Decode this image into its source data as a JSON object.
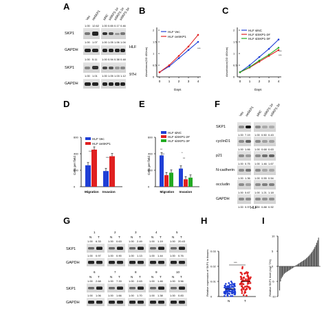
{
  "panels": {
    "A": "A",
    "B": "B",
    "C": "C",
    "D": "D",
    "E": "E",
    "F": "F",
    "G": "G",
    "H": "H",
    "I": "I"
  },
  "A": {
    "lanes": [
      "Vec",
      "oeSKP1",
      "siNC",
      "siSKP1-1#",
      "siSKP1-2#",
      "siSKP1-3#"
    ],
    "rows": [
      {
        "label": "SKP1",
        "values": [
          "1.00",
          "12.62",
          "1.00",
          "0.65",
          "0.17",
          "0.46"
        ]
      },
      {
        "label": "GAPDH",
        "values": [
          "1.00",
          "1.07",
          "1.00",
          "1.05",
          "1.06",
          "1.04"
        ]
      },
      {
        "label": "SKP1",
        "values": [
          "1.00",
          "5.11",
          "1.00",
          "0.94",
          "0.38",
          "0.48"
        ]
      },
      {
        "label": "GAPDH",
        "values": [
          "1.00",
          "1.01",
          "1.00",
          "1.05",
          "1.03",
          "1.12"
        ]
      }
    ],
    "cell_lines": [
      "HLF",
      "97H"
    ]
  },
  "B": {
    "ylabel": "Absorbance(OD 450nm)",
    "xlabel": "Days",
    "legend": [
      "HLF Vec",
      "HLF oeSKP1"
    ],
    "sig": "***"
  },
  "C": {
    "ylabel": "Absorbance(OD 450nm)",
    "xlabel": "Days",
    "legend": [
      "HLF siNC",
      "HLF siSKP1-2#",
      "HLF siSKP1-3#"
    ],
    "sig1": "***",
    "sig2": "***"
  },
  "D": {
    "ylabel": "Cells per field",
    "legend": [
      "HLF Vec",
      "HLF oeSKP1"
    ],
    "sig1": "***",
    "sig2": "***"
  },
  "E": {
    "ylabel": "Cells per field",
    "legend": [
      "HLF siNC",
      "HLF siSKP1-2#",
      "HLF siSKP1-3#"
    ],
    "sig": [
      "**",
      "**",
      "*",
      "**"
    ]
  },
  "F": {
    "lanes": [
      "Vec",
      "oeSKP1",
      "siNC",
      "siSKP1-2#",
      "siSKP1-3#"
    ],
    "rows": [
      {
        "label": "SKP1",
        "values": [
          "1.00",
          "7.19",
          "1.00",
          "0.50",
          "0.43"
        ]
      },
      {
        "label": "cyclinD1",
        "values": [
          "1.00",
          "1.66",
          "1.00",
          "0.68",
          "0.63"
        ]
      },
      {
        "label": "p21",
        "values": [
          "1.00",
          "0.75",
          "1.00",
          "1.46",
          "1.67"
        ]
      },
      {
        "label": "N-cadherin",
        "values": [
          "1.00",
          "1.36",
          "1.00",
          "0.55",
          "0.54"
        ]
      },
      {
        "label": "occludin",
        "values": [
          "1.00",
          "0.67",
          "1.00",
          "1.21",
          "1.18"
        ]
      },
      {
        "label": "GAPDH",
        "values": [
          "1.00",
          "0.97",
          "1.00",
          "0.88",
          "0.92"
        ]
      }
    ],
    "cell_line": "HLF"
  },
  "G": {
    "top": {
      "pairs": [
        "1",
        "2",
        "3",
        "4",
        "5"
      ],
      "skp1": [
        "1.00",
        "6.33",
        "1.00",
        "0.63",
        "1.00",
        "2.49",
        "1.00",
        "1.19",
        "1.00",
        "20.43"
      ],
      "gapdh": [
        "1.00",
        "0.97",
        "1.00",
        "0.90",
        "1.00",
        "1.13",
        "1.00",
        "1.44",
        "1.00",
        "0.76"
      ]
    },
    "bottom": {
      "pairs": [
        "6",
        "7",
        "8",
        "9",
        "10"
      ],
      "skp1": [
        "1.00",
        "2.68",
        "1.00",
        "7.33",
        "1.00",
        "2.63",
        "1.00",
        "1.46",
        "1.00",
        "3.56"
      ],
      "gapdh": [
        "1.00",
        "1.06",
        "1.00",
        "1.66",
        "1.00",
        "1.70",
        "1.00",
        "1.38",
        "1.00",
        "0.83"
      ]
    },
    "nt": [
      "N",
      "T"
    ],
    "row_labels": [
      "SKP1",
      "GAPDH"
    ]
  },
  "H": {
    "ylabel": "Relative expression of SKP1 in tissues",
    "xlabel": [
      "N",
      "T"
    ],
    "sig": "***"
  },
  "I": {
    "ylabel": "Relative SKP1 level (log2 T/N)"
  },
  "colors": {
    "blue": "#1f3fd6",
    "red": "#e02020",
    "green": "#22aa22"
  },
  "chart_data": [
    {
      "panel": "B",
      "type": "line",
      "title": "",
      "xlabel": "Days",
      "ylabel": "Absorbance(OD 450nm)",
      "x": [
        0,
        1,
        2,
        3,
        4
      ],
      "xlim": [
        0,
        4
      ],
      "ylim": [
        0,
        2
      ],
      "series": [
        {
          "name": "HLF Vec",
          "values": [
            0.2,
            0.45,
            0.8,
            1.15,
            1.5
          ]
        },
        {
          "name": "HLF oeSKP1",
          "values": [
            0.2,
            0.5,
            0.9,
            1.3,
            1.8
          ]
        }
      ]
    },
    {
      "panel": "C",
      "type": "line",
      "title": "",
      "xlabel": "Days",
      "ylabel": "Absorbance(OD 450nm)",
      "x": [
        0,
        1,
        2,
        3,
        4
      ],
      "xlim": [
        0,
        4
      ],
      "ylim": [
        0,
        2
      ],
      "series": [
        {
          "name": "HLF siNC",
          "values": [
            0.2,
            0.5,
            0.85,
            1.2,
            1.6
          ]
        },
        {
          "name": "HLF siSKP1-2#",
          "values": [
            0.2,
            0.4,
            0.65,
            0.9,
            1.15
          ]
        },
        {
          "name": "HLF siSKP1-3#",
          "values": [
            0.2,
            0.42,
            0.7,
            0.95,
            1.25
          ]
        }
      ]
    },
    {
      "panel": "D",
      "type": "bar",
      "title": "",
      "ylabel": "Cells per field",
      "categories": [
        "Migration",
        "Invasion"
      ],
      "ylim": [
        0,
        600
      ],
      "series": [
        {
          "name": "HLF Vec",
          "values": [
            260,
            190
          ]
        },
        {
          "name": "HLF oeSKP1",
          "values": [
            450,
            370
          ]
        }
      ]
    },
    {
      "panel": "E",
      "type": "bar",
      "title": "",
      "ylabel": "Cells per field",
      "categories": [
        "Migration",
        "Invasion"
      ],
      "ylim": [
        0,
        600
      ],
      "series": [
        {
          "name": "HLF siNC",
          "values": [
            380,
            220
          ]
        },
        {
          "name": "HLF siSKP1-2#",
          "values": [
            140,
            90
          ]
        },
        {
          "name": "HLF siSKP1-3#",
          "values": [
            170,
            110
          ]
        }
      ]
    },
    {
      "panel": "H",
      "type": "scatter",
      "title": "",
      "xlabel": "",
      "ylabel": "Relative expression of SKP1 in tissues",
      "categories": [
        "N",
        "T"
      ],
      "ylim": [
        0,
        0.03
      ],
      "series": [
        {
          "name": "N",
          "mean": 0.005
        },
        {
          "name": "T",
          "mean": 0.01
        }
      ]
    },
    {
      "panel": "I",
      "type": "bar",
      "title": "",
      "ylabel": "Relative SKP1 level (log2 T/N)",
      "ylim": [
        -10,
        10
      ],
      "values": [
        -8,
        -5,
        -4,
        -3.5,
        -3,
        -2.5,
        -2.2,
        -2,
        -1.8,
        -1.6,
        -1.4,
        -1.2,
        -1.0,
        -0.8,
        -0.6,
        -0.4,
        -0.2,
        0.2,
        0.4,
        0.6,
        0.8,
        1.0,
        1.2,
        1.4,
        1.6,
        1.8,
        2.0,
        2.2,
        2.4,
        2.7,
        3.0,
        3.3,
        3.6,
        4.0,
        4.4,
        4.8,
        5.3,
        5.8,
        6.4,
        7.0,
        7.8,
        8.6,
        9.5
      ]
    }
  ]
}
